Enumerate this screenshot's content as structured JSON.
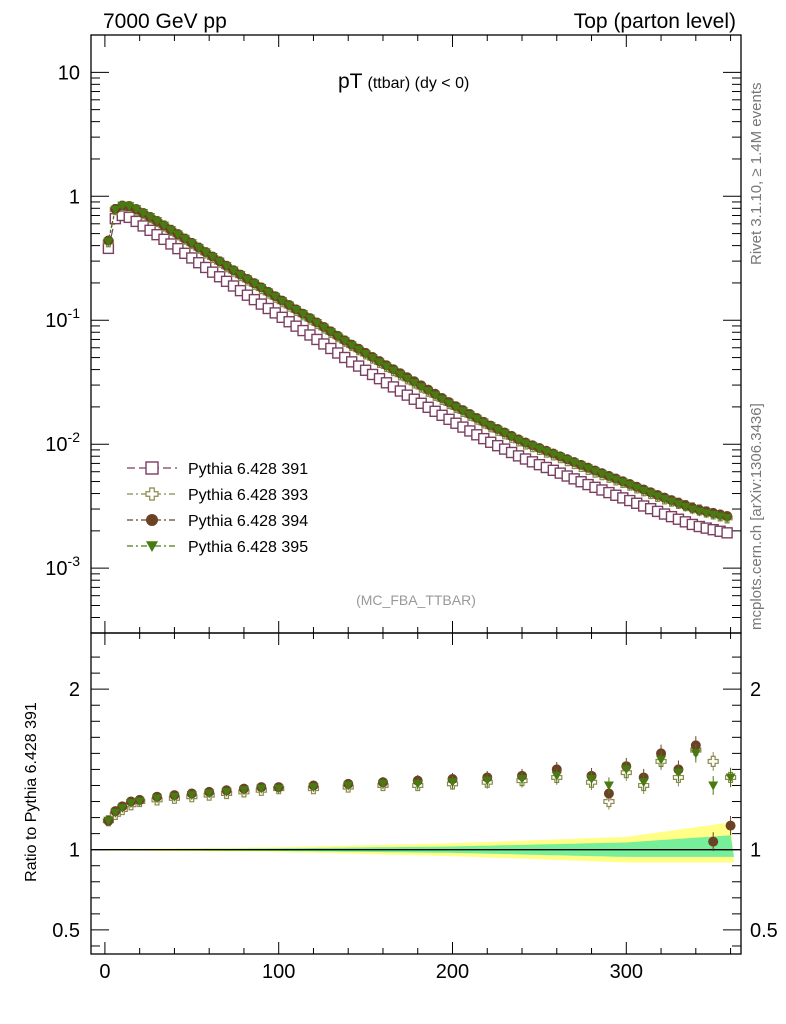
{
  "header": {
    "left": "7000 GeV pp",
    "right": "Top (parton level)"
  },
  "side_labels": {
    "rivet": "Rivet 3.1.10, ≥ 1.4M events",
    "mcplots": "mcplots.cern.ch [arXiv:1306.3436]"
  },
  "chart_data": [
    {
      "type": "scatter",
      "panel": "main",
      "title_main": "pT",
      "title_sub": "(ttbar) (dy < 0)",
      "watermark": "(MC_FBA_TTBAR)",
      "ylog": true,
      "xlim": [
        -8,
        366
      ],
      "ylim": [
        0.0003,
        20
      ],
      "xticks": [
        0,
        100,
        200,
        300
      ],
      "yticks": [
        {
          "base": "10",
          "exp": "-3",
          "value": 0.001
        },
        {
          "base": "10",
          "exp": "-2",
          "value": 0.01
        },
        {
          "base": "10",
          "exp": "-1",
          "value": 0.1
        },
        {
          "base": "1",
          "exp": "",
          "value": 1
        },
        {
          "base": "10",
          "exp": "",
          "value": 10
        }
      ],
      "legend_position": "bottom-left",
      "series": [
        {
          "name": "Pythia 6.428 391",
          "color": "#7b3f61",
          "marker": "open-square",
          "line": "dash",
          "x": [
            2,
            6,
            10,
            15,
            20,
            30,
            40,
            50,
            60,
            70,
            80,
            90,
            100,
            120,
            140,
            160,
            180,
            200,
            220,
            240,
            260,
            280,
            300,
            320,
            340,
            360
          ],
          "y": [
            0.38,
            0.66,
            0.7,
            0.67,
            0.6,
            0.49,
            0.395,
            0.318,
            0.255,
            0.206,
            0.166,
            0.135,
            0.11,
            0.073,
            0.048,
            0.0325,
            0.0222,
            0.0153,
            0.0107,
            0.0078,
            0.006,
            0.0046,
            0.0036,
            0.0028,
            0.0022,
            0.0019
          ]
        },
        {
          "name": "Pythia 6.428 393",
          "color": "#8a8a4a",
          "marker": "open-cross",
          "line": "dash-dot",
          "x": [
            2,
            6,
            10,
            15,
            20,
            30,
            40,
            50,
            60,
            70,
            80,
            90,
            100,
            120,
            140,
            160,
            180,
            200,
            220,
            240,
            260,
            280,
            300,
            320,
            340,
            360
          ],
          "y": [
            0.43,
            0.78,
            0.83,
            0.82,
            0.75,
            0.625,
            0.51,
            0.415,
            0.335,
            0.27,
            0.22,
            0.18,
            0.147,
            0.098,
            0.065,
            0.044,
            0.03,
            0.0205,
            0.0143,
            0.0103,
            0.008,
            0.0061,
            0.0048,
            0.0037,
            0.003,
            0.0025
          ]
        },
        {
          "name": "Pythia 6.428 394",
          "color": "#6b4226",
          "marker": "filled-circle",
          "line": "dash-dot",
          "x": [
            2,
            6,
            10,
            15,
            20,
            30,
            40,
            50,
            60,
            70,
            80,
            90,
            100,
            120,
            140,
            160,
            180,
            200,
            220,
            240,
            260,
            280,
            300,
            320,
            340,
            360
          ],
          "y": [
            0.44,
            0.79,
            0.84,
            0.83,
            0.76,
            0.63,
            0.515,
            0.42,
            0.34,
            0.275,
            0.224,
            0.184,
            0.15,
            0.1,
            0.066,
            0.045,
            0.031,
            0.021,
            0.0146,
            0.0106,
            0.0082,
            0.0063,
            0.0049,
            0.0038,
            0.003,
            0.0026
          ]
        },
        {
          "name": "Pythia 6.428 395",
          "color": "#4a7a12",
          "marker": "filled-triangle-down",
          "line": "dash-dot",
          "x": [
            2,
            6,
            10,
            15,
            20,
            30,
            40,
            50,
            60,
            70,
            80,
            90,
            100,
            120,
            140,
            160,
            180,
            200,
            220,
            240,
            260,
            280,
            300,
            320,
            340,
            360
          ],
          "y": [
            0.43,
            0.78,
            0.84,
            0.83,
            0.76,
            0.63,
            0.512,
            0.418,
            0.338,
            0.273,
            0.222,
            0.182,
            0.148,
            0.099,
            0.065,
            0.044,
            0.03,
            0.0205,
            0.0144,
            0.0104,
            0.0081,
            0.0062,
            0.0048,
            0.0037,
            0.0029,
            0.0025
          ]
        }
      ]
    },
    {
      "type": "scatter",
      "panel": "ratio",
      "ylabel": "Ratio to Pythia 6.428 391",
      "xlim": [
        -8,
        366
      ],
      "ylim": [
        0.35,
        2.35
      ],
      "xticks": [
        0,
        100,
        200,
        300
      ],
      "yticks": [
        0.5,
        1,
        2
      ],
      "yticklabels": [
        "0.5",
        "1",
        "2"
      ],
      "bands": {
        "x": [
          0,
          100,
          200,
          300,
          360
        ],
        "yellow_lo": [
          0.995,
          0.985,
          0.96,
          0.92,
          0.92
        ],
        "yellow_hi": [
          1.005,
          1.015,
          1.04,
          1.08,
          1.17
        ],
        "green_lo": [
          0.998,
          0.992,
          0.98,
          0.955,
          0.955
        ],
        "green_hi": [
          1.002,
          1.008,
          1.02,
          1.045,
          1.09
        ]
      },
      "series": [
        {
          "name": "Pythia 6.428 393",
          "color": "#8a8a4a",
          "marker": "open-cross",
          "x": [
            2,
            6,
            10,
            15,
            20,
            30,
            40,
            50,
            60,
            70,
            80,
            90,
            100,
            120,
            140,
            160,
            180,
            200,
            220,
            240,
            260,
            280,
            290,
            300,
            310,
            320,
            330,
            340,
            350,
            360
          ],
          "y": [
            1.18,
            1.22,
            1.25,
            1.28,
            1.3,
            1.31,
            1.32,
            1.33,
            1.34,
            1.35,
            1.36,
            1.37,
            1.38,
            1.38,
            1.39,
            1.4,
            1.4,
            1.41,
            1.42,
            1.43,
            1.45,
            1.42,
            1.3,
            1.48,
            1.4,
            1.55,
            1.45,
            1.62,
            1.55,
            1.45
          ]
        },
        {
          "name": "Pythia 6.428 394",
          "color": "#6b4226",
          "marker": "filled-circle",
          "x": [
            2,
            6,
            10,
            15,
            20,
            30,
            40,
            50,
            60,
            70,
            80,
            90,
            100,
            120,
            140,
            160,
            180,
            200,
            220,
            240,
            260,
            280,
            290,
            300,
            310,
            320,
            330,
            340,
            350,
            360
          ],
          "y": [
            1.18,
            1.24,
            1.27,
            1.3,
            1.31,
            1.33,
            1.34,
            1.35,
            1.36,
            1.37,
            1.38,
            1.39,
            1.39,
            1.4,
            1.41,
            1.42,
            1.43,
            1.44,
            1.45,
            1.46,
            1.5,
            1.46,
            1.35,
            1.52,
            1.45,
            1.6,
            1.5,
            1.65,
            1.05,
            1.15
          ]
        },
        {
          "name": "Pythia 6.428 395",
          "color": "#4a7a12",
          "marker": "filled-triangle-down",
          "x": [
            2,
            6,
            10,
            15,
            20,
            30,
            40,
            50,
            60,
            70,
            80,
            90,
            100,
            120,
            140,
            160,
            180,
            200,
            220,
            240,
            260,
            280,
            290,
            300,
            310,
            320,
            330,
            340,
            350,
            360
          ],
          "y": [
            1.18,
            1.23,
            1.26,
            1.29,
            1.3,
            1.32,
            1.33,
            1.34,
            1.35,
            1.36,
            1.37,
            1.38,
            1.38,
            1.39,
            1.4,
            1.41,
            1.41,
            1.42,
            1.43,
            1.44,
            1.46,
            1.44,
            1.4,
            1.5,
            1.42,
            1.56,
            1.48,
            1.6,
            1.4,
            1.45
          ]
        }
      ]
    }
  ]
}
